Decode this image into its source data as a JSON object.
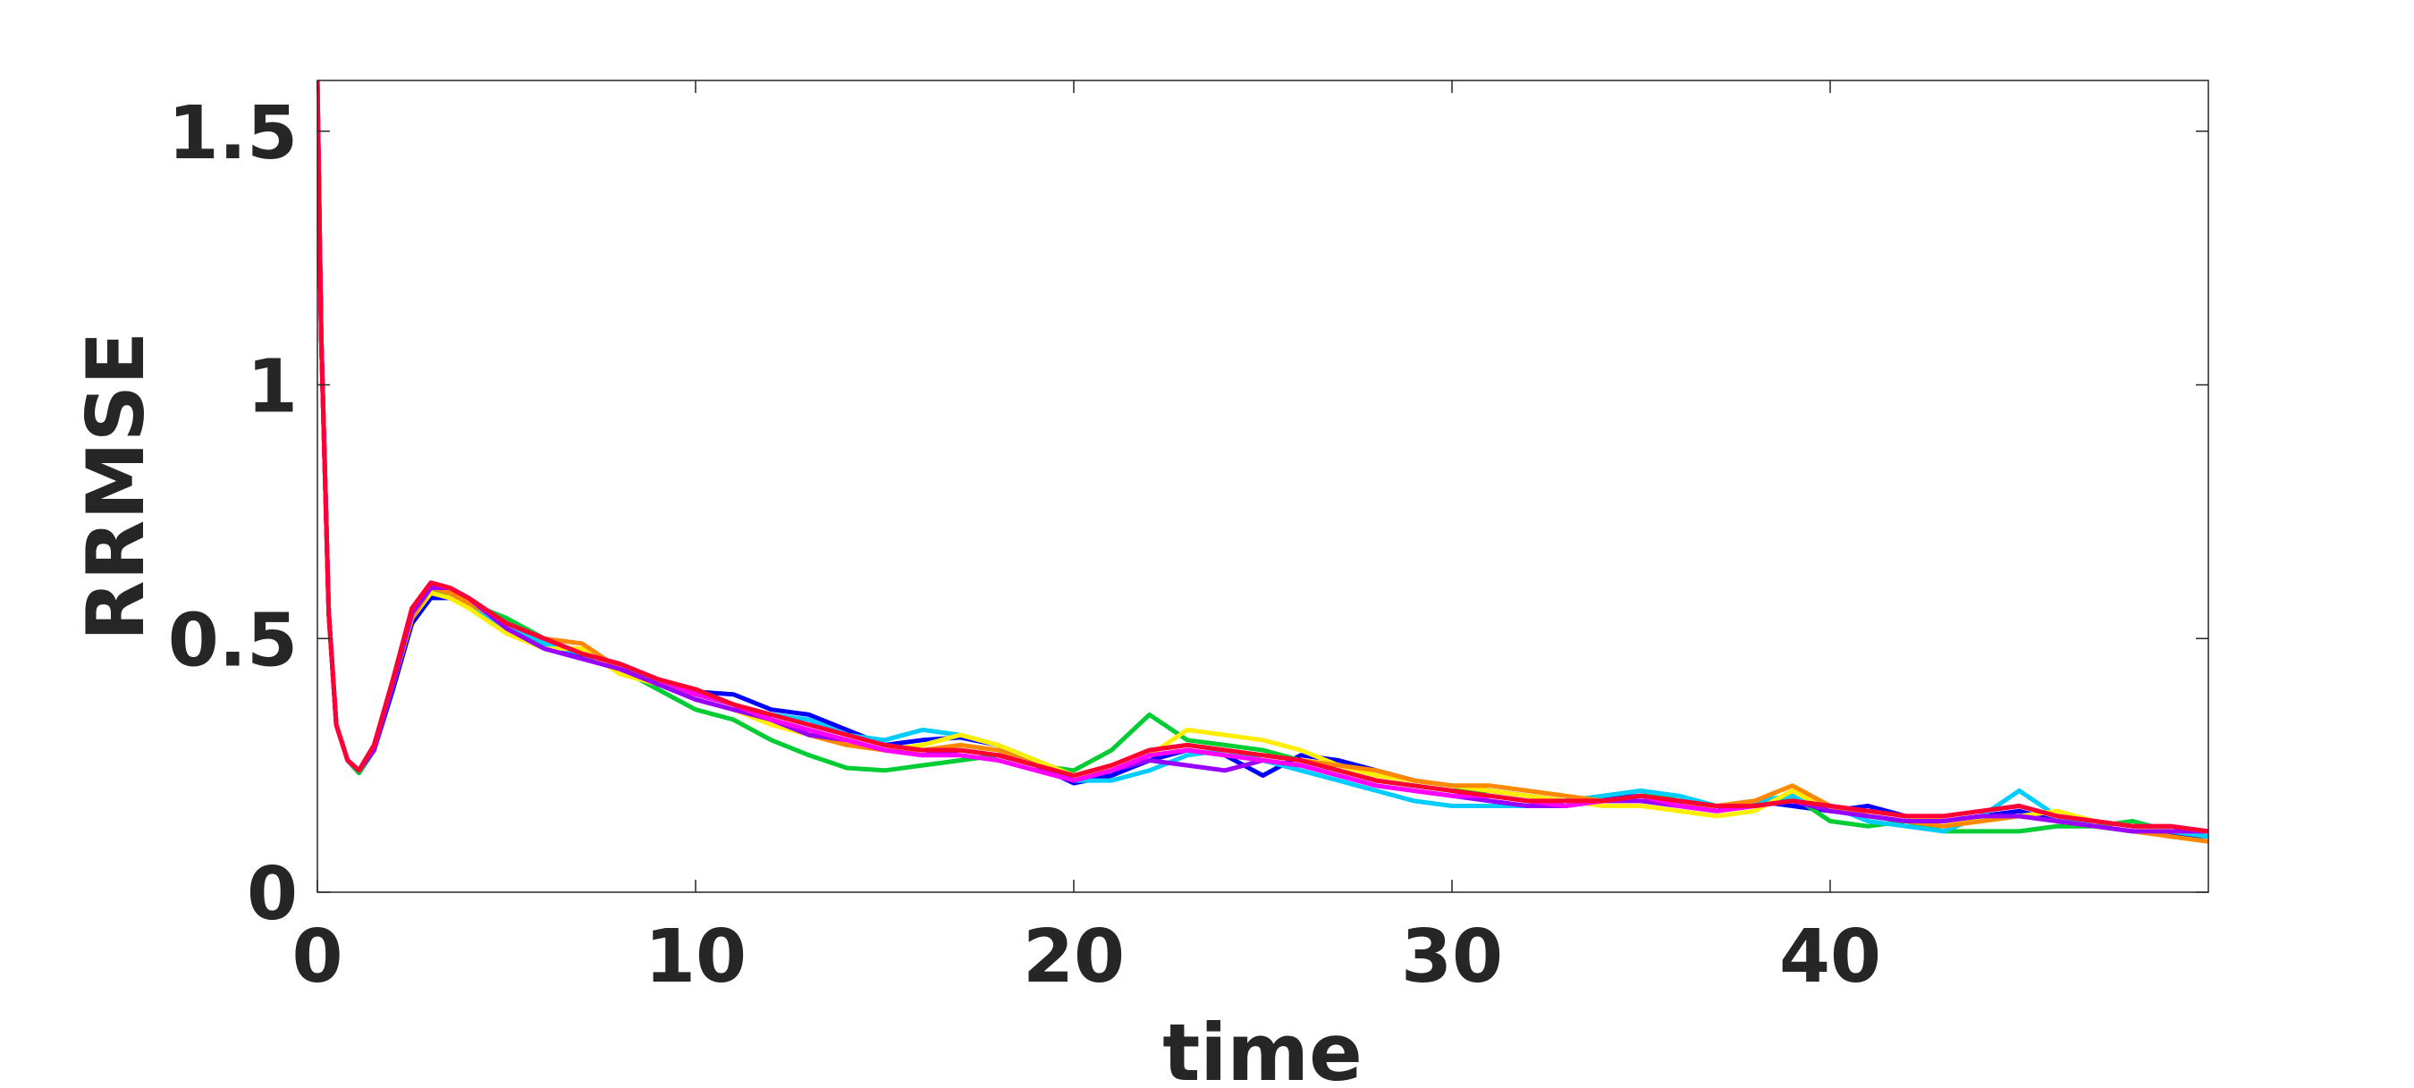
{
  "chart_data": {
    "type": "line",
    "title": "",
    "xlabel": "time",
    "ylabel": "RRMSE",
    "xlim": [
      0,
      50
    ],
    "ylim": [
      0,
      1.6
    ],
    "xticks": [
      0,
      10,
      20,
      30,
      40
    ],
    "xtick_labels": [
      "0",
      "10",
      "20",
      "30",
      "40"
    ],
    "yticks": [
      0,
      0.5,
      1,
      1.5
    ],
    "ytick_labels": [
      "0",
      "0.5",
      "1",
      "1.5"
    ],
    "grid": false,
    "legend": "none",
    "x": [
      0,
      0.1,
      0.3,
      0.5,
      0.8,
      1.1,
      1.5,
      2,
      2.5,
      3,
      3.5,
      4,
      5,
      6,
      7,
      8,
      9,
      10,
      11,
      12,
      13,
      14,
      15,
      16,
      17,
      18,
      19,
      20,
      21,
      22,
      23,
      24,
      25,
      26,
      27,
      28,
      29,
      30,
      31,
      32,
      33,
      34,
      35,
      36,
      37,
      38,
      39,
      40,
      41,
      42,
      43,
      44,
      45,
      46,
      47,
      48,
      49,
      50
    ],
    "series": [
      {
        "color": "#0000ff",
        "values": [
          1.6,
          1.1,
          0.55,
          0.33,
          0.26,
          0.235,
          0.28,
          0.4,
          0.53,
          0.58,
          0.58,
          0.565,
          0.52,
          0.49,
          0.465,
          0.44,
          0.42,
          0.395,
          0.39,
          0.36,
          0.35,
          0.32,
          0.29,
          0.3,
          0.305,
          0.29,
          0.25,
          0.215,
          0.23,
          0.26,
          0.28,
          0.27,
          0.23,
          0.27,
          0.26,
          0.24,
          0.22,
          0.21,
          0.2,
          0.19,
          0.18,
          0.185,
          0.19,
          0.18,
          0.16,
          0.18,
          0.17,
          0.16,
          0.17,
          0.15,
          0.14,
          0.15,
          0.16,
          0.14,
          0.13,
          0.12,
          0.115,
          0.11
        ]
      },
      {
        "color": "#00cc33",
        "values": [
          1.6,
          1.1,
          0.55,
          0.33,
          0.26,
          0.235,
          0.28,
          0.41,
          0.54,
          0.59,
          0.59,
          0.57,
          0.54,
          0.5,
          0.47,
          0.44,
          0.4,
          0.36,
          0.34,
          0.3,
          0.27,
          0.245,
          0.24,
          0.25,
          0.26,
          0.27,
          0.25,
          0.24,
          0.28,
          0.35,
          0.3,
          0.29,
          0.28,
          0.26,
          0.24,
          0.22,
          0.21,
          0.2,
          0.2,
          0.19,
          0.18,
          0.19,
          0.2,
          0.18,
          0.17,
          0.17,
          0.19,
          0.14,
          0.13,
          0.14,
          0.12,
          0.12,
          0.12,
          0.13,
          0.13,
          0.14,
          0.12,
          0.11
        ]
      },
      {
        "color": "#00ccff",
        "values": [
          1.6,
          1.1,
          0.55,
          0.33,
          0.26,
          0.24,
          0.29,
          0.42,
          0.55,
          0.6,
          0.59,
          0.57,
          0.52,
          0.49,
          0.47,
          0.44,
          0.42,
          0.39,
          0.37,
          0.35,
          0.34,
          0.31,
          0.3,
          0.32,
          0.31,
          0.29,
          0.26,
          0.22,
          0.22,
          0.24,
          0.27,
          0.28,
          0.26,
          0.24,
          0.22,
          0.2,
          0.18,
          0.17,
          0.17,
          0.17,
          0.18,
          0.19,
          0.2,
          0.19,
          0.17,
          0.18,
          0.19,
          0.17,
          0.14,
          0.13,
          0.12,
          0.15,
          0.2,
          0.15,
          0.13,
          0.12,
          0.12,
          0.11
        ]
      },
      {
        "color": "#ffee00",
        "values": [
          1.6,
          1.1,
          0.55,
          0.33,
          0.26,
          0.24,
          0.29,
          0.41,
          0.54,
          0.59,
          0.58,
          0.56,
          0.51,
          0.48,
          0.48,
          0.43,
          0.41,
          0.38,
          0.36,
          0.33,
          0.31,
          0.29,
          0.28,
          0.29,
          0.31,
          0.29,
          0.26,
          0.23,
          0.24,
          0.27,
          0.32,
          0.31,
          0.3,
          0.28,
          0.25,
          0.23,
          0.22,
          0.21,
          0.2,
          0.19,
          0.18,
          0.17,
          0.17,
          0.16,
          0.15,
          0.16,
          0.2,
          0.16,
          0.16,
          0.15,
          0.14,
          0.14,
          0.15,
          0.16,
          0.14,
          0.13,
          0.12,
          0.12
        ]
      },
      {
        "color": "#ff8800",
        "values": [
          1.6,
          1.1,
          0.55,
          0.33,
          0.26,
          0.24,
          0.29,
          0.41,
          0.54,
          0.6,
          0.59,
          0.57,
          0.53,
          0.5,
          0.49,
          0.44,
          0.41,
          0.39,
          0.37,
          0.34,
          0.31,
          0.29,
          0.28,
          0.28,
          0.29,
          0.28,
          0.25,
          0.23,
          0.25,
          0.28,
          0.29,
          0.28,
          0.27,
          0.26,
          0.25,
          0.24,
          0.22,
          0.21,
          0.21,
          0.2,
          0.19,
          0.18,
          0.18,
          0.17,
          0.17,
          0.18,
          0.21,
          0.17,
          0.15,
          0.14,
          0.13,
          0.14,
          0.15,
          0.14,
          0.13,
          0.12,
          0.11,
          0.1
        ]
      },
      {
        "color": "#9900ff",
        "values": [
          1.6,
          1.1,
          0.55,
          0.33,
          0.26,
          0.24,
          0.28,
          0.41,
          0.55,
          0.6,
          0.6,
          0.58,
          0.52,
          0.48,
          0.46,
          0.44,
          0.41,
          0.38,
          0.36,
          0.34,
          0.31,
          0.3,
          0.28,
          0.27,
          0.28,
          0.27,
          0.25,
          0.22,
          0.24,
          0.26,
          0.25,
          0.24,
          0.26,
          0.25,
          0.23,
          0.21,
          0.2,
          0.19,
          0.18,
          0.17,
          0.17,
          0.18,
          0.18,
          0.17,
          0.16,
          0.17,
          0.18,
          0.16,
          0.15,
          0.14,
          0.14,
          0.15,
          0.15,
          0.14,
          0.13,
          0.12,
          0.12,
          0.12
        ]
      },
      {
        "color": "#ff00ff",
        "values": [
          1.6,
          1.1,
          0.55,
          0.33,
          0.26,
          0.24,
          0.29,
          0.42,
          0.56,
          0.61,
          0.6,
          0.58,
          0.53,
          0.5,
          0.47,
          0.45,
          0.42,
          0.39,
          0.37,
          0.34,
          0.32,
          0.3,
          0.28,
          0.27,
          0.27,
          0.26,
          0.24,
          0.22,
          0.24,
          0.27,
          0.28,
          0.27,
          0.26,
          0.25,
          0.23,
          0.21,
          0.2,
          0.19,
          0.19,
          0.18,
          0.17,
          0.18,
          0.19,
          0.17,
          0.16,
          0.17,
          0.18,
          0.17,
          0.16,
          0.15,
          0.15,
          0.16,
          0.17,
          0.15,
          0.14,
          0.13,
          0.13,
          0.12
        ]
      },
      {
        "color": "#ff0033",
        "values": [
          1.6,
          1.1,
          0.55,
          0.33,
          0.26,
          0.24,
          0.29,
          0.42,
          0.56,
          0.61,
          0.6,
          0.58,
          0.53,
          0.5,
          0.47,
          0.45,
          0.42,
          0.4,
          0.37,
          0.35,
          0.33,
          0.31,
          0.29,
          0.28,
          0.28,
          0.27,
          0.25,
          0.23,
          0.25,
          0.28,
          0.29,
          0.28,
          0.27,
          0.26,
          0.24,
          0.22,
          0.21,
          0.2,
          0.19,
          0.18,
          0.18,
          0.18,
          0.19,
          0.18,
          0.17,
          0.17,
          0.18,
          0.17,
          0.16,
          0.15,
          0.15,
          0.16,
          0.17,
          0.15,
          0.14,
          0.13,
          0.13,
          0.12
        ]
      }
    ]
  }
}
